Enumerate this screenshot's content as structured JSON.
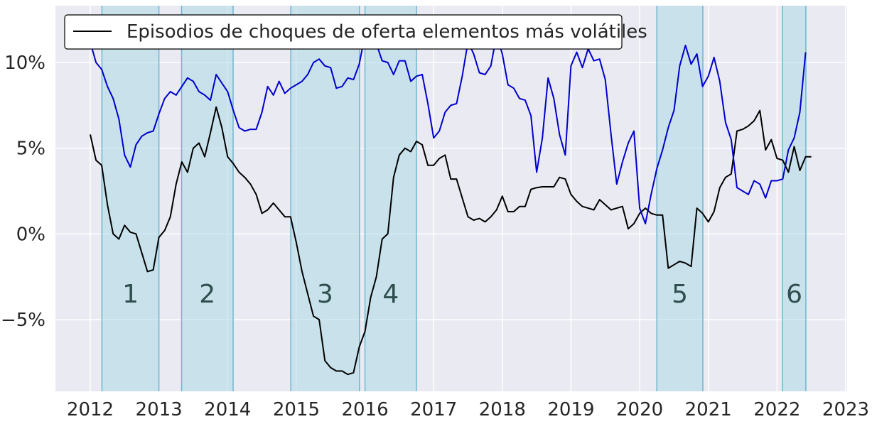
{
  "chart_data": {
    "type": "line",
    "legend": {
      "label": "Episodios de choques de oferta elementos más volátiles",
      "placement": "top-left"
    },
    "xlim": [
      2011.5,
      2023.0
    ],
    "ylim": [
      -9.2,
      13.4
    ],
    "x_ticks": [
      2012,
      2013,
      2014,
      2015,
      2016,
      2017,
      2018,
      2019,
      2020,
      2021,
      2022,
      2023
    ],
    "x_tick_labels": [
      "2012",
      "2013",
      "2014",
      "2015",
      "2016",
      "2017",
      "2018",
      "2019",
      "2020",
      "2021",
      "2022",
      "2023"
    ],
    "y_ticks": [
      -5,
      0,
      5,
      10
    ],
    "y_tick_labels": [
      "−5%",
      "0%",
      "5%",
      "10%"
    ],
    "grid": true,
    "episodes": [
      {
        "label": "1",
        "start": 2012.17,
        "end": 2013.0
      },
      {
        "label": "2",
        "start": 2013.33,
        "end": 2014.08
      },
      {
        "label": "3",
        "start": 2014.92,
        "end": 2015.92
      },
      {
        "label": "4",
        "start": 2016.0,
        "end": 2016.75
      },
      {
        "label": "5",
        "start": 2020.25,
        "end": 2020.92
      },
      {
        "label": "6",
        "start": 2022.08,
        "end": 2022.42
      }
    ],
    "series": [
      {
        "color": "#000000",
        "x_start": 2012.0,
        "x_step": 0.08333,
        "values": [
          5.8,
          4.3,
          4.0,
          1.7,
          0.0,
          -0.3,
          0.5,
          0.1,
          0.0,
          -1.1,
          -2.2,
          -2.1,
          -0.2,
          0.2,
          1.0,
          2.9,
          4.2,
          3.6,
          5.0,
          5.3,
          4.5,
          5.9,
          7.4,
          6.2,
          4.5,
          4.1,
          3.6,
          3.3,
          2.9,
          2.3,
          1.2,
          1.4,
          1.8,
          1.4,
          1.0,
          1.0,
          -0.5,
          -2.2,
          -3.5,
          -4.8,
          -5.0,
          -7.4,
          -7.8,
          -8.0,
          -8.0,
          -8.2,
          -8.1,
          -6.6,
          -5.7,
          -3.7,
          -2.5,
          -0.3,
          0.0,
          3.3,
          4.6,
          5.0,
          4.8,
          5.4,
          5.2,
          4.0,
          4.0,
          4.4,
          4.6,
          3.2,
          3.2,
          2.1,
          1.0,
          0.8,
          0.9,
          0.7,
          1.0,
          1.4,
          2.2,
          1.3,
          1.3,
          1.6,
          1.6,
          2.6,
          2.7,
          2.75,
          2.75,
          2.75,
          3.3,
          3.2,
          2.3,
          1.9,
          1.6,
          1.5,
          1.4,
          2.0,
          1.7,
          1.4,
          1.5,
          1.6,
          0.3,
          0.6,
          1.2,
          1.5,
          1.2,
          1.1,
          1.1,
          -2.0,
          -1.8,
          -1.6,
          -1.7,
          -1.9,
          1.5,
          1.2,
          0.7,
          1.3,
          2.7,
          3.3,
          3.5,
          6.0,
          6.1,
          6.3,
          6.6,
          7.2,
          4.9,
          5.5,
          4.4,
          4.3,
          3.6,
          5.1,
          3.7,
          4.5,
          4.5
        ]
      },
      {
        "color": "#0000cc",
        "x_start": 2012.0,
        "x_step": 0.08333,
        "values": [
          11.2,
          10.0,
          9.6,
          8.6,
          7.9,
          6.7,
          4.6,
          3.9,
          5.2,
          5.7,
          5.9,
          6.0,
          7.0,
          7.9,
          8.3,
          8.1,
          8.6,
          9.1,
          8.9,
          8.3,
          8.1,
          7.8,
          9.3,
          8.8,
          8.3,
          7.2,
          6.2,
          6.0,
          6.1,
          6.1,
          7.1,
          8.6,
          8.1,
          8.9,
          8.2,
          8.5,
          8.7,
          8.9,
          9.3,
          10.0,
          10.2,
          9.8,
          9.7,
          8.5,
          8.6,
          9.1,
          9.0,
          9.9,
          11.6,
          11.9,
          11.1,
          10.1,
          10.0,
          9.3,
          10.1,
          10.1,
          8.9,
          9.2,
          9.3,
          7.6,
          5.6,
          6.0,
          7.1,
          7.5,
          7.6,
          9.2,
          11.2,
          10.5,
          9.4,
          9.3,
          9.8,
          11.6,
          10.5,
          8.7,
          8.5,
          7.9,
          7.8,
          6.9,
          3.6,
          5.6,
          9.1,
          7.9,
          5.8,
          4.6,
          9.8,
          10.6,
          9.7,
          10.8,
          10.1,
          10.2,
          9.0,
          5.8,
          2.9,
          4.2,
          5.3,
          6.0,
          1.5,
          0.6,
          2.3,
          3.8,
          4.9,
          6.2,
          7.2,
          9.8,
          11.0,
          9.9,
          10.5,
          8.6,
          9.2,
          10.3,
          8.9,
          6.5,
          5.5,
          2.7,
          2.5,
          2.3,
          3.1,
          2.9,
          2.1,
          3.1,
          3.1,
          3.2,
          4.9,
          5.6,
          7.1,
          10.6
        ]
      }
    ]
  }
}
